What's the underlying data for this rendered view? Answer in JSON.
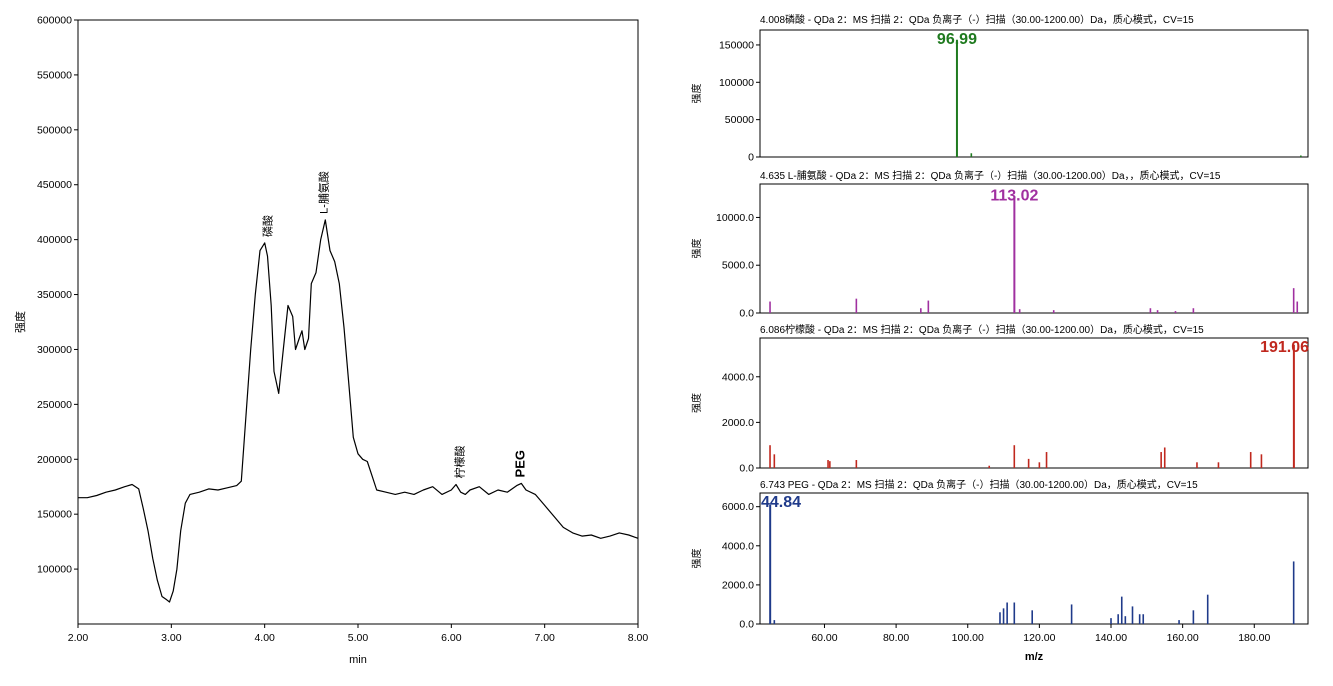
{
  "chromatogram": {
    "chart_data": {
      "type": "line",
      "xlabel": "min",
      "ylabel": "强度",
      "xlim": [
        2.0,
        8.0
      ],
      "ylim": [
        50000,
        600000
      ],
      "x_ticks": [
        "2.00",
        "3.00",
        "4.00",
        "5.00",
        "6.00",
        "7.00",
        "8.00"
      ],
      "y_ticks": [
        "100000",
        "150000",
        "200000",
        "250000",
        "300000",
        "350000",
        "400000",
        "450000",
        "500000",
        "550000",
        "600000"
      ],
      "series": [
        {
          "x": [
            2.0,
            2.1,
            2.2,
            2.3,
            2.4,
            2.5,
            2.58,
            2.65,
            2.7,
            2.75,
            2.8,
            2.85,
            2.9,
            2.95,
            2.98,
            3.02,
            3.06,
            3.1,
            3.15,
            3.2,
            3.3,
            3.4,
            3.5,
            3.6,
            3.7,
            3.75,
            3.8,
            3.85,
            3.9,
            3.95,
            4.0,
            4.03,
            4.07,
            4.1,
            4.15,
            4.2,
            4.25,
            4.3,
            4.33,
            4.37,
            4.4,
            4.43,
            4.47,
            4.5,
            4.55,
            4.6,
            4.65,
            4.7,
            4.75,
            4.8,
            4.85,
            4.9,
            4.95,
            5.0,
            5.05,
            5.1,
            5.15,
            5.2,
            5.3,
            5.4,
            5.5,
            5.6,
            5.7,
            5.8,
            5.9,
            6.0,
            6.05,
            6.1,
            6.15,
            6.2,
            6.3,
            6.4,
            6.5,
            6.6,
            6.7,
            6.75,
            6.8,
            6.9,
            7.0,
            7.1,
            7.2,
            7.3,
            7.4,
            7.5,
            7.6,
            7.7,
            7.8,
            7.9,
            8.0
          ],
          "y": [
            165000,
            165000,
            167000,
            170000,
            172000,
            175000,
            177000,
            173000,
            155000,
            135000,
            110000,
            90000,
            75000,
            72000,
            70000,
            80000,
            100000,
            135000,
            160000,
            168000,
            170000,
            173000,
            172000,
            174000,
            176000,
            180000,
            240000,
            300000,
            350000,
            390000,
            397000,
            385000,
            340000,
            280000,
            260000,
            300000,
            340000,
            330000,
            300000,
            310000,
            317000,
            300000,
            310000,
            360000,
            370000,
            400000,
            418000,
            390000,
            380000,
            360000,
            320000,
            270000,
            220000,
            205000,
            200000,
            198000,
            185000,
            172000,
            170000,
            168000,
            170000,
            168000,
            172000,
            175000,
            168000,
            172000,
            177000,
            170000,
            168000,
            172000,
            175000,
            168000,
            172000,
            170000,
            176000,
            178000,
            172000,
            168000,
            158000,
            148000,
            138000,
            133000,
            130000,
            131000,
            128000,
            130000,
            133000,
            131000,
            128000
          ]
        }
      ],
      "annotations": [
        {
          "text": "磷酸",
          "x": 4.03,
          "y": 397000
        },
        {
          "text": "L-脯氨酸",
          "x": 4.63,
          "y": 418000
        },
        {
          "text": "柠檬酸",
          "x": 6.09,
          "y": 177000
        },
        {
          "text": "PEG",
          "x": 6.74,
          "y": 178000
        }
      ]
    }
  },
  "spectra": {
    "xlabel": "m/z",
    "ylabel": "强度",
    "xlim": [
      42,
      195
    ],
    "x_ticks": [
      "60.00",
      "80.00",
      "100.00",
      "120.00",
      "140.00",
      "160.00",
      "180.00"
    ],
    "chart_data": [
      {
        "type": "bar",
        "title": "4.008磷酸 - QDa 2：MS 扫描 2：QDa 负离子（-）扫描（30.00-1200.00）Da，质心模式，CV=15",
        "color": "#1f7a1f",
        "ylim": [
          0,
          170000
        ],
        "y_ticks": [
          "0",
          "50000",
          "100000",
          "150000"
        ],
        "peak_label": "96.99",
        "x": [
          96.99,
          101.0,
          193.0
        ],
        "y": [
          157000,
          5000,
          2000
        ]
      },
      {
        "type": "bar",
        "title": "4.635 L-脯氨酸 - QDa 2：MS 扫描 2：QDa 负离子（-）扫描（30.00-1200.00）Da，，质心模式，CV=15",
        "color": "#a030a0",
        "ylim": [
          0,
          13500
        ],
        "y_ticks": [
          "0.0",
          "5000.0",
          "10000.0"
        ],
        "peak_label": "113.02",
        "x": [
          44.8,
          68.9,
          86.9,
          89.0,
          113.02,
          114.5,
          124.0,
          151.0,
          153.0,
          158.0,
          163.0,
          191.0,
          192.0
        ],
        "y": [
          1200,
          1500,
          500,
          1300,
          12000,
          400,
          300,
          500,
          300,
          200,
          500,
          2600,
          1200
        ]
      },
      {
        "type": "bar",
        "title": "6.086柠檬酸 - QDa 2：MS 扫描 2：QDa 负离子（-）扫描（30.00-1200.00）Da，质心模式，CV=15",
        "color": "#c0281e",
        "ylim": [
          0,
          5700
        ],
        "y_ticks": [
          "0.0",
          "2000.0",
          "4000.0"
        ],
        "peak_label": "191.06",
        "x": [
          44.8,
          46.0,
          61.0,
          61.5,
          68.9,
          106.0,
          113.0,
          117.0,
          120.0,
          122.0,
          154.0,
          155.0,
          164.0,
          170.0,
          179.0,
          182.0,
          191.06
        ],
        "y": [
          1000,
          600,
          350,
          300,
          350,
          100,
          1000,
          400,
          250,
          700,
          700,
          900,
          250,
          250,
          700,
          600,
          5400
        ]
      },
      {
        "type": "bar",
        "title": "6.743 PEG - QDa 2：MS 扫描 2：QDa 负离子（-）扫描（30.00-1200.00）Da，质心模式，CV=15",
        "color": "#1f3a8a",
        "ylim": [
          0,
          6700
        ],
        "y_ticks": [
          "0.0",
          "2000.0",
          "4000.0",
          "6000.0"
        ],
        "peak_label": "44.84",
        "x": [
          44.84,
          46.0,
          109.0,
          110.0,
          111.0,
          113.0,
          118.0,
          129.0,
          140.0,
          142.0,
          143.0,
          144.0,
          146.0,
          148.0,
          149.0,
          159.0,
          163.0,
          167.0,
          191.0
        ],
        "y": [
          6100,
          200,
          600,
          800,
          1100,
          1100,
          700,
          1000,
          300,
          500,
          1400,
          400,
          900,
          500,
          500,
          200,
          700,
          1500,
          3200
        ]
      }
    ]
  }
}
